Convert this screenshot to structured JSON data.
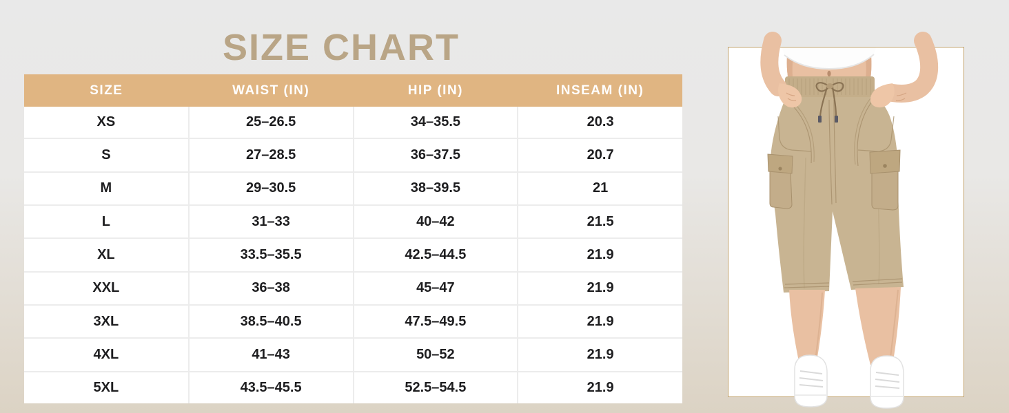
{
  "title": "SIZE CHART",
  "chart_data": {
    "type": "table",
    "title": "SIZE CHART",
    "columns": [
      "SIZE",
      "WAIST (IN)",
      "HIP (IN)",
      "INSEAM (IN)"
    ],
    "rows": [
      [
        "XS",
        "25–26.5",
        "34–35.5",
        "20.3"
      ],
      [
        "S",
        "27–28.5",
        "36–37.5",
        "20.7"
      ],
      [
        "M",
        "29–30.5",
        "38–39.5",
        "21"
      ],
      [
        "L",
        "31–33",
        "40–42",
        "21.5"
      ],
      [
        "XL",
        "33.5–35.5",
        "42.5–44.5",
        "21.9"
      ],
      [
        "XXL",
        "36–38",
        "45–47",
        "21.9"
      ],
      [
        "3XL",
        "38.5–40.5",
        "47.5–49.5",
        "21.9"
      ],
      [
        "4XL",
        "41–43",
        "50–52",
        "21.9"
      ],
      [
        "5XL",
        "43.5–45.5",
        "52.5–54.5",
        "21.9"
      ]
    ]
  },
  "photo": {
    "description": "Model wearing khaki cargo capri pants with drawstring waist, white crop top and white sneakers"
  },
  "colors": {
    "header_bg": "#e0b582",
    "title": "#b9a586",
    "cell_text": "#1d1d1f",
    "row_divider": "#ececec",
    "table_bg": "#ffffff",
    "bg_top": "#e9e9e9",
    "bg_bottom": "#dcd3c4",
    "frame_border": "#bfa06a",
    "pants_khaki": "#c8b492"
  }
}
